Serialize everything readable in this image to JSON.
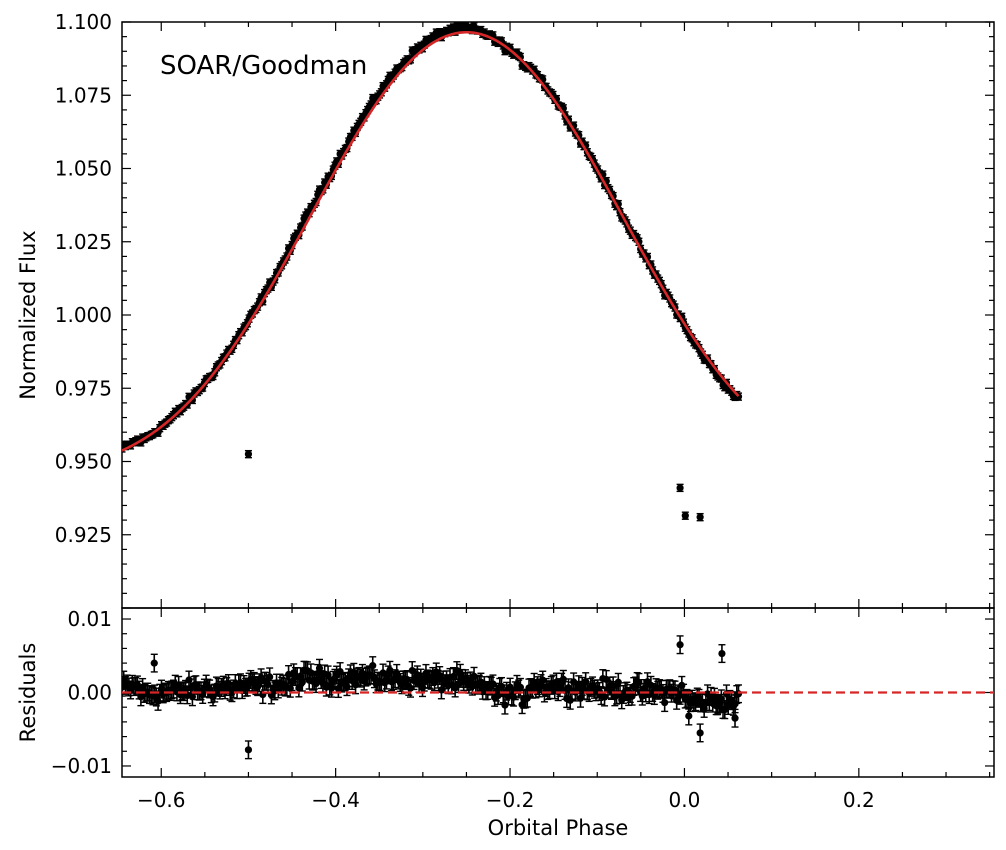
{
  "chart_data": [
    {
      "type": "scatter",
      "panel": "top",
      "annotation": "SOAR/Goodman",
      "xlabel": "",
      "ylabel": "Normalized Flux",
      "xlim": [
        -0.645,
        0.355
      ],
      "ylim": [
        0.9,
        1.1
      ],
      "yticks": [
        0.925,
        0.95,
        0.975,
        1.0,
        1.025,
        1.05,
        1.075,
        1.1
      ],
      "ytick_labels": [
        "0.925",
        "0.950",
        "0.975",
        "1.000",
        "1.025",
        "1.050",
        "1.075",
        "1.100"
      ],
      "grid": false,
      "series": [
        {
          "name": "data",
          "style": "points-with-errorbars",
          "color": "#000000",
          "x_start": -0.645,
          "x_end": 0.062,
          "n_points": 360,
          "yerr": 0.0012,
          "model": "sinusoid",
          "outliers": [
            {
              "x": -0.5,
              "y": 0.9525
            },
            {
              "x": -0.005,
              "y": 0.941
            },
            {
              "x": 0.018,
              "y": 0.931
            },
            {
              "x": 0.001,
              "y": 0.9315
            }
          ]
        },
        {
          "name": "model",
          "style": "line",
          "color": "#d62728",
          "model_params": {
            "mean": 1.0095,
            "a1": 0.0745,
            "phi1": 0.25,
            "a2": 0.0125,
            "phi2": 0.75
          },
          "x_start": -0.645,
          "x_end": 0.062
        }
      ]
    },
    {
      "type": "scatter",
      "panel": "bottom",
      "xlabel": "Orbital Phase",
      "ylabel": "Residuals",
      "xlim": [
        -0.645,
        0.355
      ],
      "ylim": [
        -0.0115,
        0.0115
      ],
      "xticks": [
        -0.6,
        -0.4,
        -0.2,
        0.0,
        0.2
      ],
      "xtick_labels": [
        "−0.6",
        "−0.4",
        "−0.2",
        "0.0",
        "0.2"
      ],
      "yticks": [
        -0.01,
        0.0,
        0.01
      ],
      "ytick_labels": [
        "−0.01",
        "0.00",
        "0.01"
      ],
      "grid": false,
      "series": [
        {
          "name": "residuals",
          "style": "points-with-errorbars",
          "color": "#000000",
          "x_start": -0.645,
          "x_end": 0.062,
          "n_points": 360,
          "yerr": 0.0012,
          "outliers": [
            {
              "x": -0.5,
              "y": -0.0078
            },
            {
              "x": 0.038,
              "y": -0.0018
            },
            {
              "x": 0.043,
              "y": 0.0053
            },
            {
              "x": -0.005,
              "y": 0.0065
            },
            {
              "x": 0.018,
              "y": -0.0055
            },
            {
              "x": 0.005,
              "y": -0.0032
            },
            {
              "x": 0.058,
              "y": -0.0035
            },
            {
              "x": -0.608,
              "y": 0.004
            }
          ]
        },
        {
          "name": "zero-line",
          "style": "dashed-line",
          "color": "#d62728",
          "y": 0.0
        }
      ]
    }
  ]
}
